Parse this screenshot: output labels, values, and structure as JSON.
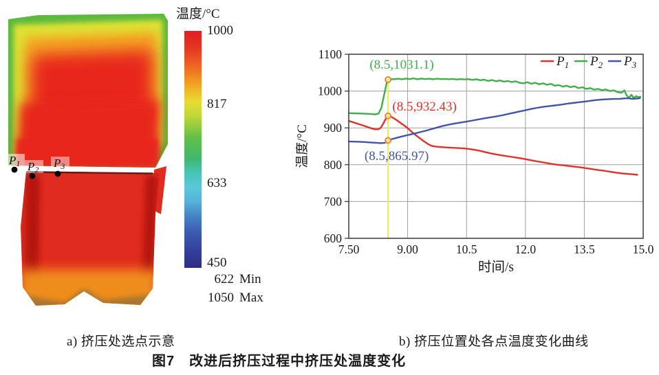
{
  "figure": {
    "panel_a": {
      "caption": "a) 挤压处选点示意",
      "points": [
        {
          "label": "P",
          "sub": "1"
        },
        {
          "label": "P",
          "sub": "2"
        },
        {
          "label": "P",
          "sub": "3"
        }
      ],
      "colorbar": {
        "title": "温度/°C",
        "ticks": [
          "1000",
          "817",
          "633",
          "450"
        ],
        "extras": [
          {
            "value": "622",
            "text": "Min"
          },
          {
            "value": "1050",
            "text": "Max"
          }
        ]
      }
    },
    "panel_b": {
      "caption": "b) 挤压位置处各点温度变化曲线"
    },
    "main_caption": "图7　改进后挤压过程中挤压处温度变化"
  },
  "chart_data": {
    "type": "line",
    "title": "",
    "xlabel": "时间/s",
    "ylabel": "温度/°C",
    "xlim": [
      7.5,
      15.0
    ],
    "ylim": [
      600,
      1100
    ],
    "grid": true,
    "grid_color": "#9e9e9e",
    "border_color": "#454545",
    "legend_position": "top-right-inside",
    "xticks": [
      {
        "label": "7.50",
        "value": 7.5
      },
      {
        "label": "9.00",
        "value": 9.0
      },
      {
        "label": "10.5",
        "value": 10.5
      },
      {
        "label": "12.0",
        "value": 12.0
      },
      {
        "label": "13.5",
        "value": 13.5
      },
      {
        "label": "15.0",
        "value": 15.0
      }
    ],
    "yticks": [
      {
        "label": "600",
        "value": 600
      },
      {
        "label": "700",
        "value": 700
      },
      {
        "label": "800",
        "value": 800
      },
      {
        "label": "900",
        "value": 900
      },
      {
        "label": "1000",
        "value": 1000
      },
      {
        "label": "1100",
        "value": 1100
      }
    ],
    "marker_line": {
      "x": 8.5,
      "top": 1031.1,
      "color": "#e9ee63"
    },
    "marker_style": {
      "fill": "#faf3a2",
      "stroke": "#ee7f2f"
    },
    "annotations": [
      {
        "text": "(8.5,1031.1)",
        "x": 8.5,
        "y": 1031.1,
        "label_x": 8.85,
        "label_y": 1061,
        "color": "#3fae49"
      },
      {
        "text": "(8.5,932.43)",
        "x": 8.5,
        "y": 932.43,
        "label_x": 9.43,
        "label_y": 947,
        "color": "#e23028"
      },
      {
        "text": "(8.5,865.97)",
        "x": 8.5,
        "y": 865.97,
        "label_x": 8.72,
        "label_y": 813,
        "color": "#4254a7"
      }
    ],
    "series": [
      {
        "name": "P1",
        "color": "#e23028",
        "points": [
          [
            7.5,
            919
          ],
          [
            7.62,
            915
          ],
          [
            7.75,
            910.5
          ],
          [
            7.88,
            906
          ],
          [
            8.0,
            901.5
          ],
          [
            8.1,
            898
          ],
          [
            8.18,
            896
          ],
          [
            8.26,
            896.5
          ],
          [
            8.32,
            901
          ],
          [
            8.4,
            916
          ],
          [
            8.46,
            928.5
          ],
          [
            8.5,
            932.43
          ],
          [
            8.55,
            931.5
          ],
          [
            8.62,
            928
          ],
          [
            8.72,
            921
          ],
          [
            8.82,
            913.5
          ],
          [
            8.92,
            906
          ],
          [
            9.02,
            897.5
          ],
          [
            9.12,
            887.5
          ],
          [
            9.22,
            879
          ],
          [
            9.32,
            871
          ],
          [
            9.42,
            863
          ],
          [
            9.52,
            856
          ],
          [
            9.6,
            851.5
          ],
          [
            9.7,
            849.5
          ],
          [
            9.82,
            848
          ],
          [
            9.95,
            847
          ],
          [
            10.1,
            846
          ],
          [
            10.25,
            845.5
          ],
          [
            10.4,
            844.5
          ],
          [
            10.55,
            843
          ],
          [
            10.7,
            840.5
          ],
          [
            10.85,
            837.5
          ],
          [
            11.0,
            833.5
          ],
          [
            11.15,
            830
          ],
          [
            11.3,
            827
          ],
          [
            11.45,
            824.5
          ],
          [
            11.6,
            822
          ],
          [
            11.75,
            819.5
          ],
          [
            11.9,
            817
          ],
          [
            12.05,
            814
          ],
          [
            12.2,
            811
          ],
          [
            12.35,
            808
          ],
          [
            12.5,
            805.5
          ],
          [
            12.65,
            802.5
          ],
          [
            12.8,
            800
          ],
          [
            12.95,
            798.5
          ],
          [
            13.1,
            796.5
          ],
          [
            13.25,
            794.5
          ],
          [
            13.4,
            793
          ],
          [
            13.55,
            790.5
          ],
          [
            13.7,
            788
          ],
          [
            13.85,
            785.5
          ],
          [
            14.0,
            783.5
          ],
          [
            14.15,
            781
          ],
          [
            14.3,
            778.5
          ],
          [
            14.45,
            776.5
          ],
          [
            14.6,
            775
          ],
          [
            14.72,
            774
          ],
          [
            14.85,
            772.5
          ]
        ]
      },
      {
        "name": "P2",
        "color": "#3fae49",
        "points": [
          [
            7.5,
            940
          ],
          [
            7.65,
            939.5
          ],
          [
            7.8,
            939
          ],
          [
            7.95,
            938.5
          ],
          [
            8.08,
            937.5
          ],
          [
            8.18,
            936.8
          ],
          [
            8.26,
            939
          ],
          [
            8.33,
            955
          ],
          [
            8.4,
            990
          ],
          [
            8.46,
            1020
          ],
          [
            8.5,
            1031.1
          ],
          [
            8.56,
            1033
          ],
          [
            8.65,
            1032
          ],
          [
            8.75,
            1033.5
          ],
          [
            8.85,
            1032
          ],
          [
            8.95,
            1034
          ],
          [
            9.05,
            1032.5
          ],
          [
            9.15,
            1034.5
          ],
          [
            9.25,
            1032
          ],
          [
            9.35,
            1034
          ],
          [
            9.45,
            1032.5
          ],
          [
            9.55,
            1033.5
          ],
          [
            9.65,
            1032
          ],
          [
            9.75,
            1033.5
          ],
          [
            9.85,
            1032.5
          ],
          [
            9.95,
            1033
          ],
          [
            10.05,
            1032
          ],
          [
            10.15,
            1033
          ],
          [
            10.25,
            1031.5
          ],
          [
            10.35,
            1032.5
          ],
          [
            10.45,
            1031.8
          ],
          [
            10.55,
            1032.5
          ],
          [
            10.65,
            1030.5
          ],
          [
            10.75,
            1032
          ],
          [
            10.85,
            1029.5
          ],
          [
            10.95,
            1031
          ],
          [
            11.05,
            1027.5
          ],
          [
            11.15,
            1030
          ],
          [
            11.25,
            1026.5
          ],
          [
            11.35,
            1029
          ],
          [
            11.45,
            1025.5
          ],
          [
            11.55,
            1027.5
          ],
          [
            11.65,
            1024.5
          ],
          [
            11.75,
            1026.5
          ],
          [
            11.85,
            1022.5
          ],
          [
            11.95,
            1021
          ],
          [
            12.05,
            1024
          ],
          [
            12.15,
            1020
          ],
          [
            12.25,
            1022.5
          ],
          [
            12.35,
            1018.5
          ],
          [
            12.45,
            1021
          ],
          [
            12.55,
            1017
          ],
          [
            12.65,
            1019.5
          ],
          [
            12.75,
            1014.5
          ],
          [
            12.85,
            1016.5
          ],
          [
            12.95,
            1012
          ],
          [
            13.05,
            1014.5
          ],
          [
            13.15,
            1010.5
          ],
          [
            13.25,
            1013
          ],
          [
            13.35,
            1008
          ],
          [
            13.45,
            1010.5
          ],
          [
            13.55,
            1006
          ],
          [
            13.65,
            1008
          ],
          [
            13.75,
            1004
          ],
          [
            13.85,
            1006
          ],
          [
            13.95,
            1002.5
          ],
          [
            14.05,
            1004.5
          ],
          [
            14.15,
            1000
          ],
          [
            14.25,
            1002
          ],
          [
            14.35,
            997
          ],
          [
            14.45,
            995.5
          ],
          [
            14.52,
            1002
          ],
          [
            14.58,
            988
          ],
          [
            14.64,
            982
          ],
          [
            14.7,
            990
          ],
          [
            14.76,
            981
          ],
          [
            14.82,
            986
          ],
          [
            14.88,
            983.5
          ],
          [
            14.93,
            984.5
          ]
        ]
      },
      {
        "name": "P3",
        "color": "#4254a7",
        "points": [
          [
            7.5,
            863
          ],
          [
            7.7,
            862.5
          ],
          [
            7.9,
            861.5
          ],
          [
            8.05,
            860.5
          ],
          [
            8.2,
            859.5
          ],
          [
            8.32,
            858.5
          ],
          [
            8.42,
            859.5
          ],
          [
            8.5,
            865.97
          ],
          [
            8.6,
            869.5
          ],
          [
            8.72,
            873
          ],
          [
            8.85,
            876.5
          ],
          [
            9.0,
            880.5
          ],
          [
            9.15,
            884
          ],
          [
            9.3,
            888
          ],
          [
            9.45,
            892
          ],
          [
            9.6,
            896.5
          ],
          [
            9.75,
            901
          ],
          [
            9.9,
            905.5
          ],
          [
            10.05,
            909
          ],
          [
            10.2,
            912
          ],
          [
            10.35,
            914.5
          ],
          [
            10.5,
            917
          ],
          [
            10.65,
            920
          ],
          [
            10.8,
            923
          ],
          [
            10.95,
            926
          ],
          [
            11.1,
            928.5
          ],
          [
            11.25,
            931
          ],
          [
            11.4,
            934
          ],
          [
            11.55,
            937.5
          ],
          [
            11.7,
            941
          ],
          [
            11.85,
            944.5
          ],
          [
            12.0,
            948
          ],
          [
            12.15,
            951.5
          ],
          [
            12.3,
            954.5
          ],
          [
            12.45,
            957
          ],
          [
            12.6,
            959
          ],
          [
            12.75,
            961
          ],
          [
            12.9,
            963
          ],
          [
            13.05,
            965.5
          ],
          [
            13.2,
            967.5
          ],
          [
            13.35,
            969.5
          ],
          [
            13.5,
            971.5
          ],
          [
            13.65,
            973.5
          ],
          [
            13.8,
            975.5
          ],
          [
            13.95,
            977
          ],
          [
            14.1,
            978
          ],
          [
            14.25,
            978.5
          ],
          [
            14.4,
            979
          ],
          [
            14.52,
            980
          ],
          [
            14.62,
            980.5
          ],
          [
            14.72,
            979
          ],
          [
            14.82,
            979.5
          ],
          [
            14.92,
            980.5
          ]
        ]
      }
    ]
  }
}
